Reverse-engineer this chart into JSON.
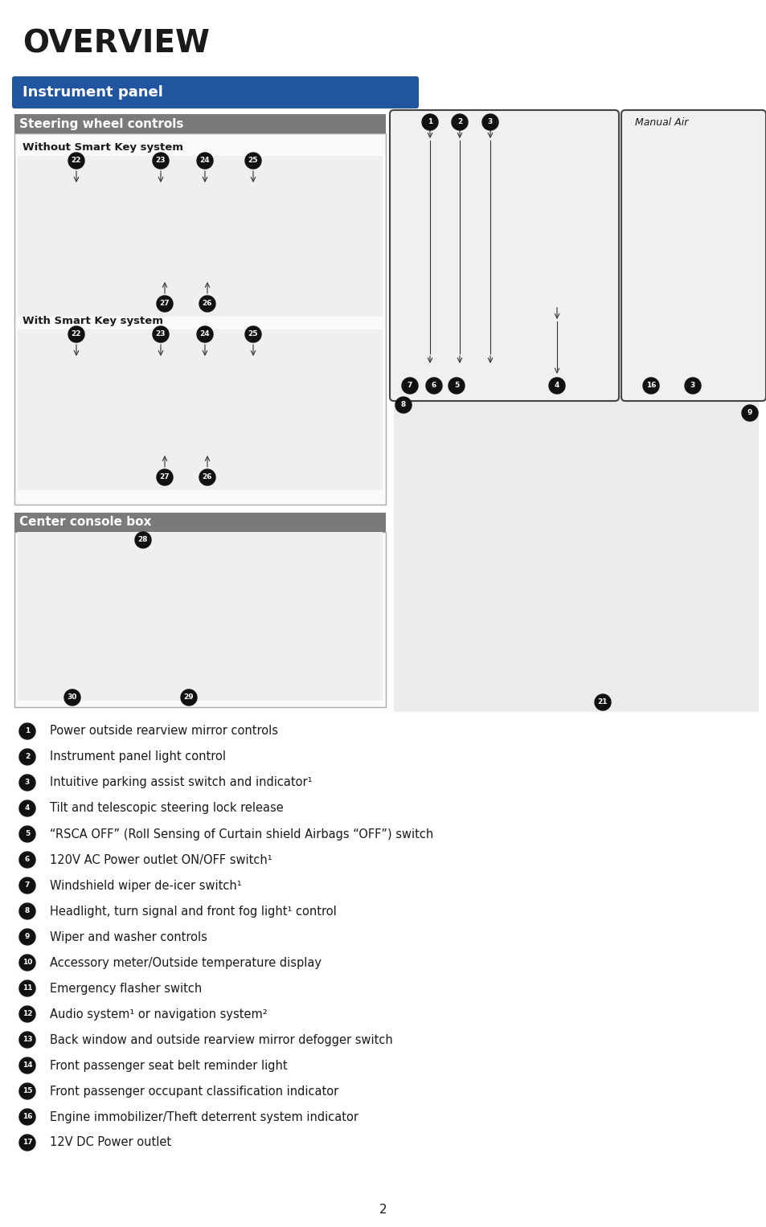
{
  "title": "OVERVIEW",
  "section_header": "Instrument panel",
  "section_header_bg": "#2255a0",
  "section_header_fg": "#ffffff",
  "sub1_header": "Steering wheel controls",
  "sub1_bg": "#7a7a7a",
  "sub1_fg": "#ffffff",
  "sub2_header": "Center console box",
  "sub2_bg": "#7a7a7a",
  "sub2_fg": "#ffffff",
  "manual_air_label": "Manual Air",
  "items": [
    {
      "num": "1",
      "text": "Power outside rearview mirror controls"
    },
    {
      "num": "2",
      "text": "Instrument panel light control"
    },
    {
      "num": "3",
      "text": "Intuitive parking assist switch and indicator¹"
    },
    {
      "num": "4",
      "text": "Tilt and telescopic steering lock release"
    },
    {
      "num": "5",
      "text": "“RSCA OFF” (Roll Sensing of Curtain shield Airbags “OFF”) switch"
    },
    {
      "num": "6",
      "text": "120V AC Power outlet ON/OFF switch¹"
    },
    {
      "num": "7",
      "text": "Windshield wiper de-icer switch¹"
    },
    {
      "num": "8",
      "text": "Headlight, turn signal and front fog light¹ control"
    },
    {
      "num": "9",
      "text": "Wiper and washer controls"
    },
    {
      "num": "10",
      "text": "Accessory meter/Outside temperature display"
    },
    {
      "num": "11",
      "text": "Emergency flasher switch"
    },
    {
      "num": "12",
      "text": "Audio system¹ or navigation system²"
    },
    {
      "num": "13",
      "text": "Back window and outside rearview mirror defogger switch"
    },
    {
      "num": "14",
      "text": "Front passenger seat belt reminder light"
    },
    {
      "num": "15",
      "text": "Front passenger occupant classification indicator"
    },
    {
      "num": "16",
      "text": "Engine immobilizer/Theft deterrent system indicator"
    },
    {
      "num": "17",
      "text": "12V DC Power outlet"
    }
  ],
  "page_number": "2",
  "bg": "#ffffff",
  "fg": "#1a1a1a"
}
